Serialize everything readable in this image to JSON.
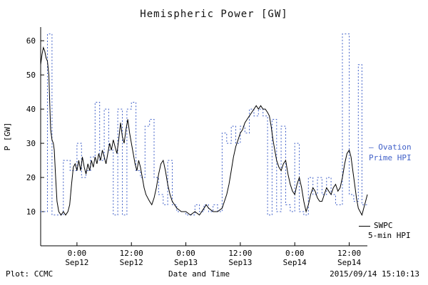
{
  "title": "Hemispheric Power [GW]",
  "footer": {
    "left": "Plot: CCMC",
    "center": "Date and Time",
    "right": "2015/09/14 15:10:13"
  },
  "legend": {
    "ovation": {
      "line1": "– Ovation",
      "line2": "Prime HPI",
      "color": "#4060c8"
    },
    "swpc": {
      "line1": "SWPC",
      "line2": "5-min HPI",
      "color": "#000000"
    }
  },
  "chart_data": {
    "type": "line",
    "title": "Hemispheric Power [GW]",
    "xlabel": "Date and Time",
    "ylabel": "P [GW]",
    "ylim": [
      0,
      64
    ],
    "xlim": [
      0,
      72
    ],
    "y_ticks": [
      10,
      20,
      30,
      40,
      50,
      60
    ],
    "x_ticks": [
      {
        "hour": 8,
        "label_time": "0:00",
        "label_date": "Sep12"
      },
      {
        "hour": 20,
        "label_time": "12:00",
        "label_date": "Sep12"
      },
      {
        "hour": 32,
        "label_time": "0:00",
        "label_date": "Sep13"
      },
      {
        "hour": 44,
        "label_time": "12:00",
        "label_date": "Sep13"
      },
      {
        "hour": 56,
        "label_time": "0:00",
        "label_date": "Sep14"
      },
      {
        "hour": 68,
        "label_time": "12:00",
        "label_date": "Sep14"
      }
    ],
    "series": [
      {
        "name": "Ovation Prime HPI",
        "color": "#4060c8",
        "style": "dotted-step",
        "x": [
          0,
          1.5,
          2.5,
          5,
          6.5,
          8,
          9,
          10,
          11,
          12,
          13,
          14,
          15,
          16,
          17,
          18,
          19,
          20,
          21,
          22,
          23,
          24,
          25,
          26,
          27,
          28,
          29,
          30,
          32,
          34,
          35,
          36,
          37,
          38,
          39,
          40,
          41,
          42,
          43,
          44,
          45,
          46,
          47,
          48,
          49,
          50,
          51,
          52,
          53,
          54,
          55,
          56,
          57,
          58,
          59,
          60,
          61,
          62,
          63,
          64,
          65,
          66.5,
          68,
          69,
          70,
          70.8,
          72
        ],
        "y": [
          10,
          62,
          9,
          25,
          22,
          30,
          20,
          22,
          26,
          42,
          25,
          40,
          28,
          9,
          40,
          9,
          40,
          42,
          22,
          20,
          35,
          37,
          20,
          15,
          12,
          25,
          12,
          10,
          9,
          12,
          10,
          12,
          10,
          12,
          10,
          33,
          30,
          35,
          30,
          35,
          33,
          40,
          38,
          40,
          38,
          9,
          37,
          10,
          35,
          12,
          10,
          30,
          10,
          9,
          20,
          15,
          20,
          15,
          20,
          15,
          12,
          62,
          15,
          13,
          53,
          12,
          12
        ]
      },
      {
        "name": "SWPC 5-min HPI",
        "color": "#000000",
        "style": "solid-line",
        "x": [
          0,
          0.3,
          0.6,
          0.9,
          1.2,
          1.5,
          1.8,
          2.0,
          2.2,
          2.5,
          2.8,
          3.0,
          3.3,
          3.6,
          4.0,
          4.5,
          5.0,
          5.5,
          6.0,
          6.4,
          6.8,
          7.2,
          7.6,
          8.0,
          8.4,
          8.8,
          9.2,
          9.6,
          10.0,
          10.4,
          10.8,
          11.2,
          11.6,
          12.0,
          12.4,
          12.8,
          13.2,
          13.6,
          14.0,
          14.4,
          14.8,
          15.2,
          15.6,
          16.0,
          16.4,
          16.8,
          17.2,
          17.6,
          18.0,
          18.4,
          18.8,
          19.2,
          19.6,
          20.0,
          20.4,
          20.8,
          21.2,
          21.6,
          22.0,
          22.4,
          22.8,
          23.2,
          23.6,
          24.0,
          24.5,
          25.0,
          25.5,
          26.0,
          26.5,
          27.0,
          27.5,
          28.0,
          28.5,
          29.0,
          29.5,
          30.0,
          31.0,
          32.0,
          33.0,
          34.0,
          35.0,
          36.0,
          36.5,
          37.0,
          38.0,
          39.0,
          40.0,
          40.5,
          41.0,
          41.5,
          42.0,
          42.5,
          43.0,
          43.5,
          44.0,
          44.5,
          45.0,
          45.5,
          46.0,
          46.5,
          47.0,
          47.5,
          48.0,
          48.5,
          49.0,
          49.5,
          50.0,
          50.4,
          50.8,
          51.2,
          51.6,
          52.0,
          52.5,
          53.0,
          53.5,
          54.0,
          54.5,
          55.0,
          55.5,
          56.0,
          56.5,
          57.0,
          57.5,
          58.0,
          58.5,
          59.0,
          59.5,
          60.0,
          60.5,
          61.0,
          61.5,
          62.0,
          62.5,
          63.0,
          63.5,
          64.0,
          64.5,
          65.0,
          65.5,
          66.0,
          66.5,
          67.0,
          67.5,
          68.0,
          68.4,
          68.8,
          69.2,
          69.6,
          70.0,
          70.4,
          70.8,
          71.2,
          71.6,
          72.0
        ],
        "y": [
          53,
          56,
          58,
          57,
          55,
          54,
          50,
          42,
          34,
          31,
          30,
          28,
          20,
          13,
          10,
          9,
          10,
          9,
          10,
          12,
          18,
          23,
          24,
          22,
          25,
          22,
          26,
          23,
          21,
          24,
          22,
          25,
          23,
          26,
          24,
          27,
          25,
          28,
          26,
          24,
          27,
          30,
          28,
          31,
          29,
          27,
          31,
          36,
          32,
          30,
          34,
          37,
          33,
          30,
          27,
          24,
          22,
          25,
          23,
          20,
          17,
          15,
          14,
          13,
          12,
          14,
          17,
          21,
          24,
          25,
          22,
          18,
          15,
          13,
          12,
          11,
          10,
          10,
          9,
          10,
          9,
          11,
          12,
          11,
          10,
          10,
          11,
          13,
          15,
          18,
          22,
          26,
          29,
          31,
          33,
          34,
          36,
          37,
          38,
          39,
          40,
          41,
          40,
          41,
          40,
          40,
          39,
          38,
          35,
          31,
          28,
          25,
          23,
          22,
          24,
          25,
          21,
          18,
          16,
          15,
          18,
          20,
          17,
          13,
          10,
          12,
          15,
          17,
          16,
          14,
          13,
          13,
          15,
          17,
          16,
          15,
          17,
          18,
          16,
          17,
          20,
          24,
          27,
          28,
          26,
          22,
          18,
          14,
          11,
          10,
          9,
          11,
          13,
          15
        ]
      }
    ]
  }
}
